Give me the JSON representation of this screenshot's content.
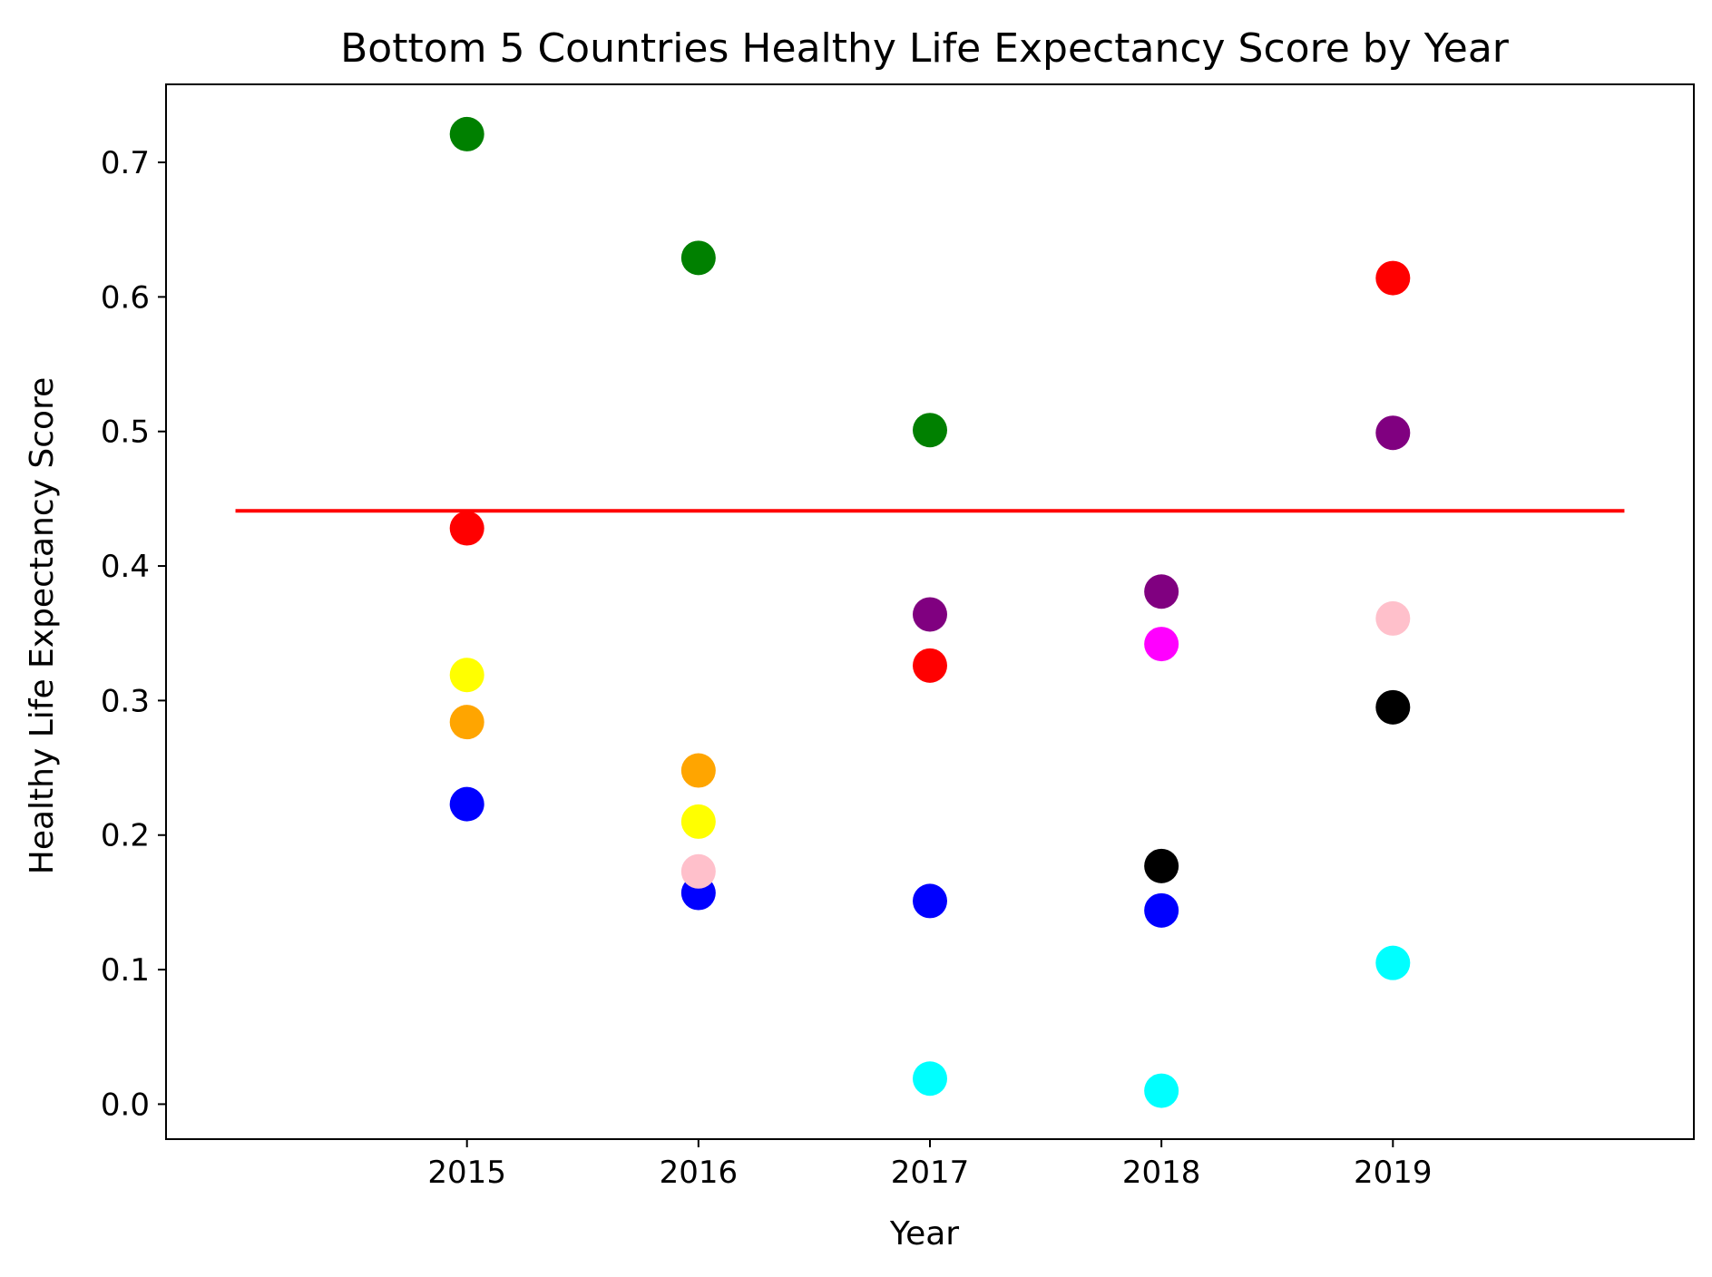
{
  "chart_data": {
    "type": "scatter",
    "title": "Bottom 5 Countries Healthy Life Expectancy Score by Year",
    "xlabel": "Year",
    "ylabel": "Healthy Life Expectancy Score",
    "categories": [
      "2015",
      "2016",
      "2017",
      "2018",
      "2019"
    ],
    "x_ticks": [
      "2015",
      "2016",
      "2017",
      "2018",
      "2019"
    ],
    "y_ticks": [
      "0.0",
      "0.1",
      "0.2",
      "0.3",
      "0.4",
      "0.5",
      "0.6",
      "0.7"
    ],
    "xlim": [
      2013.7,
      2020.3
    ],
    "ylim": [
      -0.026,
      0.758
    ],
    "grid": false,
    "reference_line": {
      "y": 0.441,
      "x_start": 2014.0,
      "x_end": 2020.0,
      "color": "#ff0000"
    },
    "points": [
      {
        "x": 2015,
        "y": 0.721,
        "color": "#008000"
      },
      {
        "x": 2015,
        "y": 0.428,
        "color": "#ff0000"
      },
      {
        "x": 2015,
        "y": 0.319,
        "color": "#ffff00"
      },
      {
        "x": 2015,
        "y": 0.284,
        "color": "#ffa500"
      },
      {
        "x": 2015,
        "y": 0.223,
        "color": "#0000ff"
      },
      {
        "x": 2016,
        "y": 0.629,
        "color": "#008000"
      },
      {
        "x": 2016,
        "y": 0.248,
        "color": "#ffa500"
      },
      {
        "x": 2016,
        "y": 0.21,
        "color": "#ffff00"
      },
      {
        "x": 2016,
        "y": 0.157,
        "color": "#0000ff"
      },
      {
        "x": 2016,
        "y": 0.173,
        "color": "#ffc0cb"
      },
      {
        "x": 2017,
        "y": 0.501,
        "color": "#008000"
      },
      {
        "x": 2017,
        "y": 0.364,
        "color": "#800080"
      },
      {
        "x": 2017,
        "y": 0.326,
        "color": "#ff0000"
      },
      {
        "x": 2017,
        "y": 0.151,
        "color": "#0000ff"
      },
      {
        "x": 2017,
        "y": 0.019,
        "color": "#00ffff"
      },
      {
        "x": 2018,
        "y": 0.381,
        "color": "#800080"
      },
      {
        "x": 2018,
        "y": 0.342,
        "color": "#ff00ff"
      },
      {
        "x": 2018,
        "y": 0.177,
        "color": "#000000"
      },
      {
        "x": 2018,
        "y": 0.144,
        "color": "#0000ff"
      },
      {
        "x": 2018,
        "y": 0.01,
        "color": "#00ffff"
      },
      {
        "x": 2019,
        "y": 0.614,
        "color": "#ff0000"
      },
      {
        "x": 2019,
        "y": 0.499,
        "color": "#800080"
      },
      {
        "x": 2019,
        "y": 0.361,
        "color": "#ffc0cb"
      },
      {
        "x": 2019,
        "y": 0.295,
        "color": "#000000"
      },
      {
        "x": 2019,
        "y": 0.105,
        "color": "#00ffff"
      }
    ]
  }
}
